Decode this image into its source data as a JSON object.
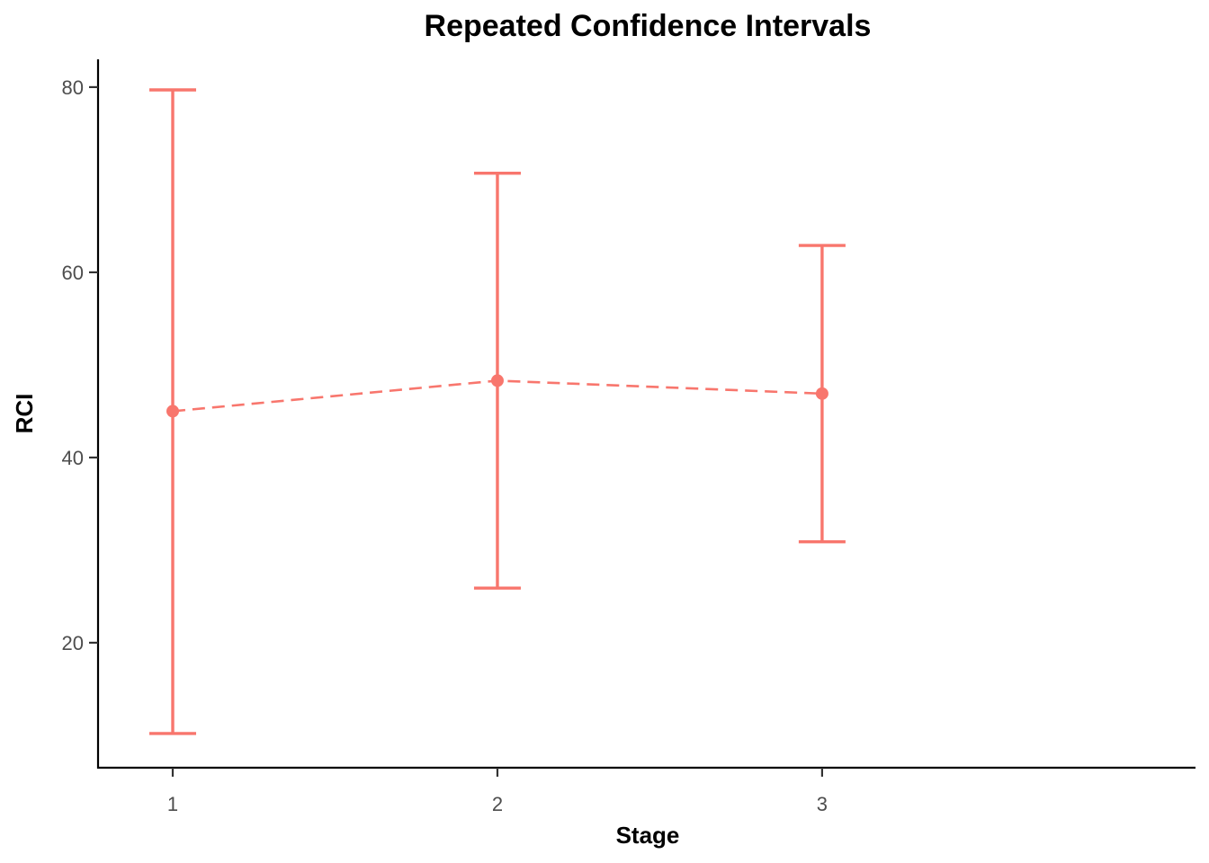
{
  "chart_data": {
    "type": "line",
    "title": "Repeated Confidence Intervals",
    "xlabel": "Stage",
    "ylabel": "RCI",
    "x": [
      1,
      2,
      3
    ],
    "xlim": [
      0.77,
      4.15
    ],
    "ylim": [
      6.5,
      83
    ],
    "yticks": [
      20,
      40,
      60,
      80
    ],
    "grid": false,
    "legend": "none",
    "series": [
      {
        "estimate": [
          45.0,
          48.3,
          46.9
        ],
        "lower": [
          10.2,
          25.9,
          30.9
        ],
        "upper": [
          79.7,
          70.7,
          62.9
        ],
        "color": "#F8766D",
        "line_style": "dashed"
      }
    ]
  }
}
